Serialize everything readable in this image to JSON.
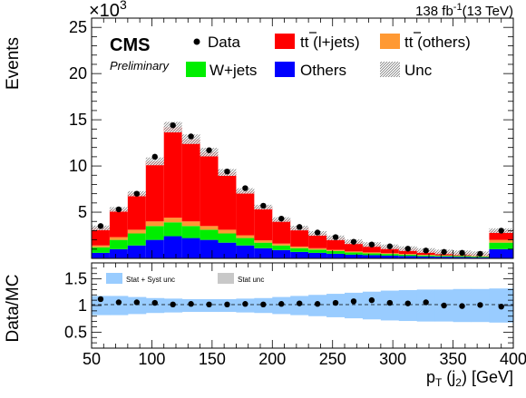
{
  "chart_data": [
    {
      "type": "bar",
      "title": "",
      "experiment": "CMS",
      "status": "Preliminary",
      "lumi": "138 fb",
      "lumi_exp": "-1",
      "energy": "(13 TeV)",
      "ylabel": "Events",
      "yscale_base": "×10",
      "yscale_exp": "3",
      "ylim": [
        0,
        26
      ],
      "xlim": [
        50,
        400
      ],
      "yticks": [
        5,
        10,
        15,
        20,
        25
      ],
      "legend": {
        "data": "Data",
        "ttbar_ljets_tt": "tt",
        "ttbar_ljets_rest": " (l+jets)",
        "ttbar_others_tt": "tt",
        "ttbar_others_rest": " (others)",
        "wjets": "W+jets",
        "others": "Others",
        "unc": "Unc"
      },
      "colors": {
        "ttbar_ljets": "#ff0000",
        "ttbar_others": "#ff9933",
        "wjets": "#00ee00",
        "others": "#0000ff",
        "stat_syst": "#99ccff",
        "stat": "#c8c8c8"
      },
      "bin_edges": [
        50,
        65,
        80,
        95,
        110,
        125,
        140,
        155,
        170,
        185,
        200,
        215,
        230,
        245,
        260,
        275,
        290,
        305,
        320,
        335,
        350,
        365,
        380,
        400
      ],
      "series": [
        {
          "name": "Others",
          "values": [
            0.6,
            1.0,
            1.4,
            2.0,
            2.4,
            2.2,
            2.0,
            1.7,
            1.4,
            1.1,
            0.9,
            0.7,
            0.6,
            0.5,
            0.4,
            0.35,
            0.3,
            0.25,
            0.2,
            0.18,
            0.15,
            0.12,
            1.0
          ]
        },
        {
          "name": "W+jets",
          "values": [
            0.6,
            1.0,
            1.3,
            1.5,
            1.5,
            1.3,
            1.1,
            1.0,
            0.8,
            0.6,
            0.5,
            0.4,
            0.35,
            0.3,
            0.25,
            0.2,
            0.18,
            0.15,
            0.12,
            0.1,
            0.1,
            0.08,
            0.7
          ]
        },
        {
          "name": "tt (others)",
          "values": [
            0.2,
            0.3,
            0.4,
            0.5,
            0.5,
            0.5,
            0.4,
            0.4,
            0.3,
            0.25,
            0.2,
            0.18,
            0.15,
            0.12,
            0.1,
            0.1,
            0.08,
            0.07,
            0.06,
            0.05,
            0.05,
            0.04,
            0.3
          ]
        },
        {
          "name": "tt (l+jets)",
          "values": [
            1.9,
            3.0,
            3.9,
            6.5,
            9.8,
            8.9,
            8.0,
            6.2,
            4.8,
            3.6,
            2.6,
            2.0,
            1.6,
            1.3,
            1.05,
            0.85,
            0.69,
            0.58,
            0.47,
            0.37,
            0.3,
            0.26,
            1.0
          ]
        }
      ],
      "data": [
        3.5,
        5.3,
        7.0,
        11.0,
        14.4,
        13.2,
        11.7,
        9.4,
        7.6,
        5.7,
        4.3,
        3.4,
        2.8,
        2.3,
        1.8,
        1.5,
        1.3,
        1.05,
        0.85,
        0.7,
        0.6,
        0.5,
        3.0
      ],
      "ratio": {
        "ylabel": "Data/MC",
        "ylim": [
          0.2,
          1.8
        ],
        "yticks": [
          "0.5",
          "1",
          "1.5"
        ],
        "xticks": [
          "50",
          "100",
          "150",
          "200",
          "250",
          "300",
          "350",
          "400"
        ],
        "xlabel_p": "p",
        "xlabel_sub": "T",
        "xlabel_open": " (j",
        "xlabel_sub2": "2",
        "xlabel_close": ") [GeV]",
        "legend_stat_syst": "Stat + Syst unc",
        "legend_stat": "Stat unc",
        "values": [
          1.12,
          1.06,
          1.06,
          1.05,
          1.02,
          1.03,
          1.02,
          1.02,
          1.03,
          1.02,
          1.03,
          1.04,
          1.03,
          1.05,
          1.08,
          1.1,
          1.05,
          1.04,
          1.06,
          1.0,
          0.99,
          1.01,
          0.98
        ],
        "band_half_width": [
          0.18,
          0.18,
          0.16,
          0.14,
          0.13,
          0.12,
          0.12,
          0.12,
          0.13,
          0.14,
          0.16,
          0.18,
          0.2,
          0.22,
          0.24,
          0.26,
          0.28,
          0.29,
          0.3,
          0.3,
          0.31,
          0.31,
          0.32
        ]
      }
    }
  ]
}
